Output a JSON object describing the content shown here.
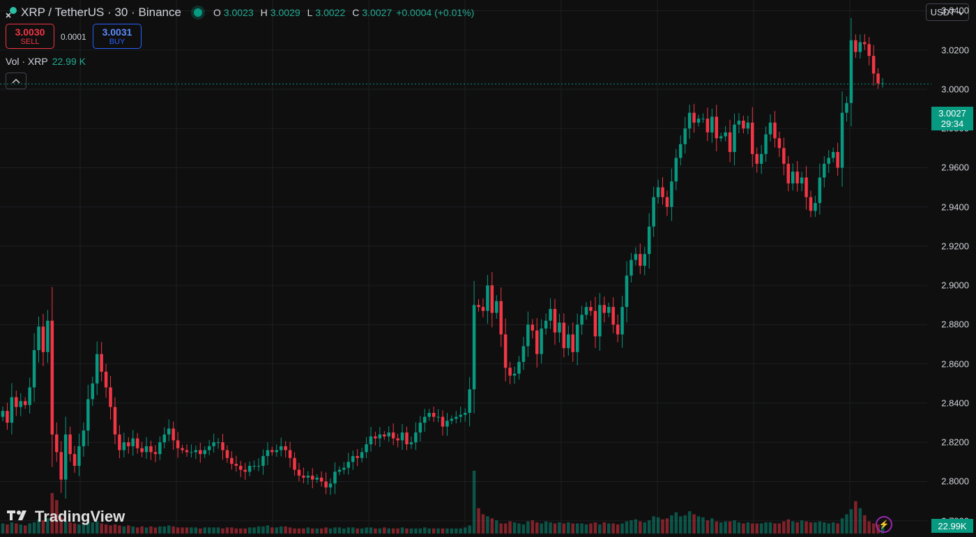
{
  "header": {
    "symbol": "XRP / TetherUS · 30 · Binance",
    "ohlc": [
      {
        "k": "O",
        "v": "3.0023"
      },
      {
        "k": "H",
        "v": "3.0029"
      },
      {
        "k": "L",
        "v": "3.0022"
      },
      {
        "k": "C",
        "v": "3.0027"
      }
    ],
    "change": "+0.0004 (+0.01%)"
  },
  "trade": {
    "sell_price": "3.0030",
    "sell_label": "SELL",
    "spread": "0.0001",
    "buy_price": "3.0031",
    "buy_label": "BUY"
  },
  "volume_legend": {
    "label": "Vol · XRP",
    "value": "22.99 K"
  },
  "currency_select": "USDT",
  "last_price": {
    "price": "3.0027",
    "countdown": "29:34"
  },
  "volume_last": "22.99K",
  "watermark": "TradingView",
  "colors": {
    "up": "#089981",
    "down": "#f23645",
    "bg": "#0f0f0f",
    "grid": "#1e1f22"
  },
  "chart_data": {
    "type": "candlestick",
    "title": "XRP / TetherUS · 30 · Binance",
    "ylim": [
      2.7735,
      3.0455
    ],
    "yticks": [
      "3.0400",
      "3.0200",
      "3.0000",
      "2.9800",
      "2.9600",
      "2.9400",
      "2.9200",
      "2.9000",
      "2.8800",
      "2.8600",
      "2.8400",
      "2.8200",
      "2.8000",
      "2.7800"
    ],
    "ytick_values": [
      3.04,
      3.02,
      3.0,
      2.98,
      2.96,
      2.94,
      2.92,
      2.9,
      2.88,
      2.86,
      2.84,
      2.82,
      2.8,
      2.78
    ],
    "grid": true,
    "last_price": 3.0027,
    "closes": [
      2.836,
      2.83,
      2.843,
      2.838,
      2.841,
      2.839,
      2.848,
      2.867,
      2.879,
      2.866,
      2.882,
      2.824,
      2.815,
      2.801,
      2.824,
      2.814,
      2.808,
      2.818,
      2.826,
      2.842,
      2.85,
      2.865,
      2.856,
      2.848,
      2.838,
      2.824,
      2.816,
      2.82,
      2.818,
      2.822,
      2.817,
      2.815,
      2.818,
      2.815,
      2.814,
      2.82,
      2.824,
      2.827,
      2.821,
      2.817,
      2.816,
      2.815,
      2.815,
      2.816,
      2.814,
      2.816,
      2.818,
      2.82,
      2.82,
      2.816,
      2.812,
      2.809,
      2.808,
      2.806,
      2.805,
      2.808,
      2.808,
      2.808,
      2.813,
      2.816,
      2.815,
      2.816,
      2.818,
      2.816,
      2.812,
      2.806,
      2.803,
      2.802,
      2.803,
      2.801,
      2.802,
      2.8,
      2.797,
      2.799,
      2.805,
      2.806,
      2.807,
      2.81,
      2.813,
      2.812,
      2.815,
      2.819,
      2.823,
      2.822,
      2.824,
      2.823,
      2.825,
      2.822,
      2.821,
      2.825,
      2.819,
      2.82,
      2.825,
      2.83,
      2.833,
      2.835,
      2.833,
      2.833,
      2.828,
      2.831,
      2.832,
      2.833,
      2.834,
      2.835,
      2.847,
      2.89,
      2.889,
      2.887,
      2.9,
      2.886,
      2.892,
      2.875,
      2.858,
      2.854,
      2.855,
      2.861,
      2.869,
      2.88,
      2.877,
      2.865,
      2.878,
      2.882,
      2.888,
      2.876,
      2.881,
      2.868,
      2.875,
      2.866,
      2.88,
      2.885,
      2.889,
      2.887,
      2.874,
      2.89,
      2.886,
      2.889,
      2.88,
      2.875,
      2.889,
      2.905,
      2.913,
      2.916,
      2.91,
      2.916,
      2.93,
      2.945,
      2.95,
      2.945,
      2.94,
      2.953,
      2.965,
      2.972,
      2.98,
      2.988,
      2.983,
      2.985,
      2.985,
      2.978,
      2.986,
      2.975,
      2.976,
      2.978,
      2.968,
      2.982,
      2.984,
      2.98,
      2.983,
      2.967,
      2.962,
      2.967,
      2.977,
      2.983,
      2.975,
      2.97,
      2.962,
      2.952,
      2.958,
      2.952,
      2.955,
      2.945,
      2.938,
      2.942,
      2.955,
      2.962,
      2.965,
      2.968,
      2.96,
      2.988,
      2.993,
      3.025,
      3.019,
      3.024,
      3.023,
      3.017,
      3.008,
      3.003,
      3.003
    ],
    "volumes": [
      1.0,
      0.9,
      1.1,
      1.0,
      0.9,
      0.8,
      1.0,
      1.1,
      1.4,
      1.3,
      1.5,
      4.0,
      3.3,
      1.6,
      1.2,
      1.1,
      1.0,
      0.9,
      1.0,
      1.2,
      1.1,
      1.2,
      1.0,
      0.9,
      0.8,
      0.9,
      0.8,
      0.7,
      0.8,
      0.7,
      0.6,
      0.7,
      0.6,
      0.7,
      0.6,
      0.7,
      0.7,
      0.8,
      0.7,
      0.6,
      0.6,
      0.6,
      0.6,
      0.6,
      0.5,
      0.6,
      0.6,
      0.6,
      0.6,
      0.5,
      0.6,
      0.6,
      0.5,
      0.5,
      0.5,
      0.6,
      0.6,
      0.7,
      0.7,
      0.8,
      0.6,
      0.6,
      0.7,
      0.7,
      0.6,
      0.5,
      0.5,
      0.5,
      0.6,
      0.5,
      0.5,
      0.5,
      0.6,
      0.5,
      0.6,
      0.6,
      0.5,
      0.6,
      0.6,
      0.5,
      0.5,
      0.6,
      0.6,
      0.5,
      0.5,
      0.6,
      0.5,
      0.5,
      0.5,
      0.6,
      0.5,
      0.5,
      0.5,
      0.5,
      0.6,
      0.5,
      0.5,
      0.5,
      0.5,
      0.5,
      0.5,
      0.5,
      0.5,
      0.6,
      0.8,
      6.2,
      2.5,
      1.9,
      1.7,
      1.5,
      1.3,
      1.0,
      1.0,
      1.2,
      1.1,
      1.0,
      0.9,
      1.2,
      1.3,
      1.1,
      1.0,
      1.2,
      1.1,
      1.0,
      1.1,
      1.0,
      1.1,
      1.0,
      1.0,
      1.0,
      0.9,
      1.0,
      1.1,
      0.9,
      1.1,
      1.0,
      1.0,
      0.9,
      1.0,
      1.2,
      1.3,
      1.4,
      1.2,
      1.1,
      1.3,
      1.7,
      1.6,
      1.4,
      1.5,
      1.8,
      2.1,
      1.7,
      1.8,
      2.2,
      1.9,
      1.7,
      1.6,
      1.3,
      1.5,
      1.2,
      1.1,
      1.2,
      1.2,
      1.3,
      1.1,
      1.0,
      1.1,
      1.0,
      1.0,
      1.0,
      1.1,
      1.1,
      1.0,
      1.0,
      1.2,
      1.4,
      1.2,
      1.1,
      1.3,
      1.2,
      1.1,
      1.1,
      1.2,
      1.1,
      1.0,
      1.1,
      1.0,
      1.5,
      1.9,
      2.4,
      3.2,
      2.5,
      1.8,
      1.2,
      1.0,
      0.9,
      0.8
    ]
  }
}
